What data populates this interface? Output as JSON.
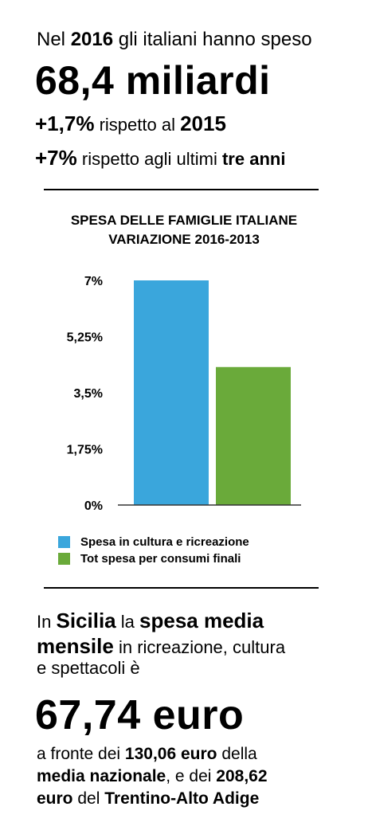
{
  "headline": {
    "line1_pre": "Nel",
    "line1_year": "2016",
    "line1_post": "gli italiani hanno speso",
    "big_amount": "68,4 miliardi",
    "line3_pct": "+1,7%",
    "line3_mid": "rispetto al",
    "line3_year": "2015",
    "line4_pct": "+7%",
    "line4_mid": "rispetto agli ultimi",
    "line4_end": "tre anni"
  },
  "chart_data": {
    "type": "bar",
    "title_line1": "SPESA DELLE FAMIGLIE ITALIANE",
    "title_line2": "VARIAZIONE 2016-2013",
    "ylim": [
      0,
      7
    ],
    "y_ticks": [
      "0%",
      "1,75%",
      "3,5%",
      "5,25%",
      "7%"
    ],
    "y_tick_values": [
      0,
      1.75,
      3.5,
      5.25,
      7
    ],
    "grid": false,
    "legend_position": "bottom",
    "series": [
      {
        "name": "Spesa in cultura e ricreazione",
        "value": 7.0,
        "color": "#3aa6dc"
      },
      {
        "name": "Tot spesa per consumi finali",
        "value": 4.3,
        "color": "#6aaa3a"
      }
    ]
  },
  "regional": {
    "l1_pre": "In",
    "l1_region": "Sicilia",
    "l1_mid": "la",
    "l1_strong": "spesa media",
    "l2_strong": "mensile",
    "l2_post": "in ricreazione, cultura",
    "l3": "e spettacoli è",
    "big_amount": "67,74 euro",
    "f1_pre": "a fronte dei",
    "f1_amount": "130,06 euro",
    "f1_post": " della",
    "f2_strong": "media nazionale",
    "f2_mid": ", e dei",
    "f2_amount": "208,62",
    "f3_amount": "euro",
    "f3_mid": "del",
    "f3_region": "Trentino-Alto Adige"
  }
}
